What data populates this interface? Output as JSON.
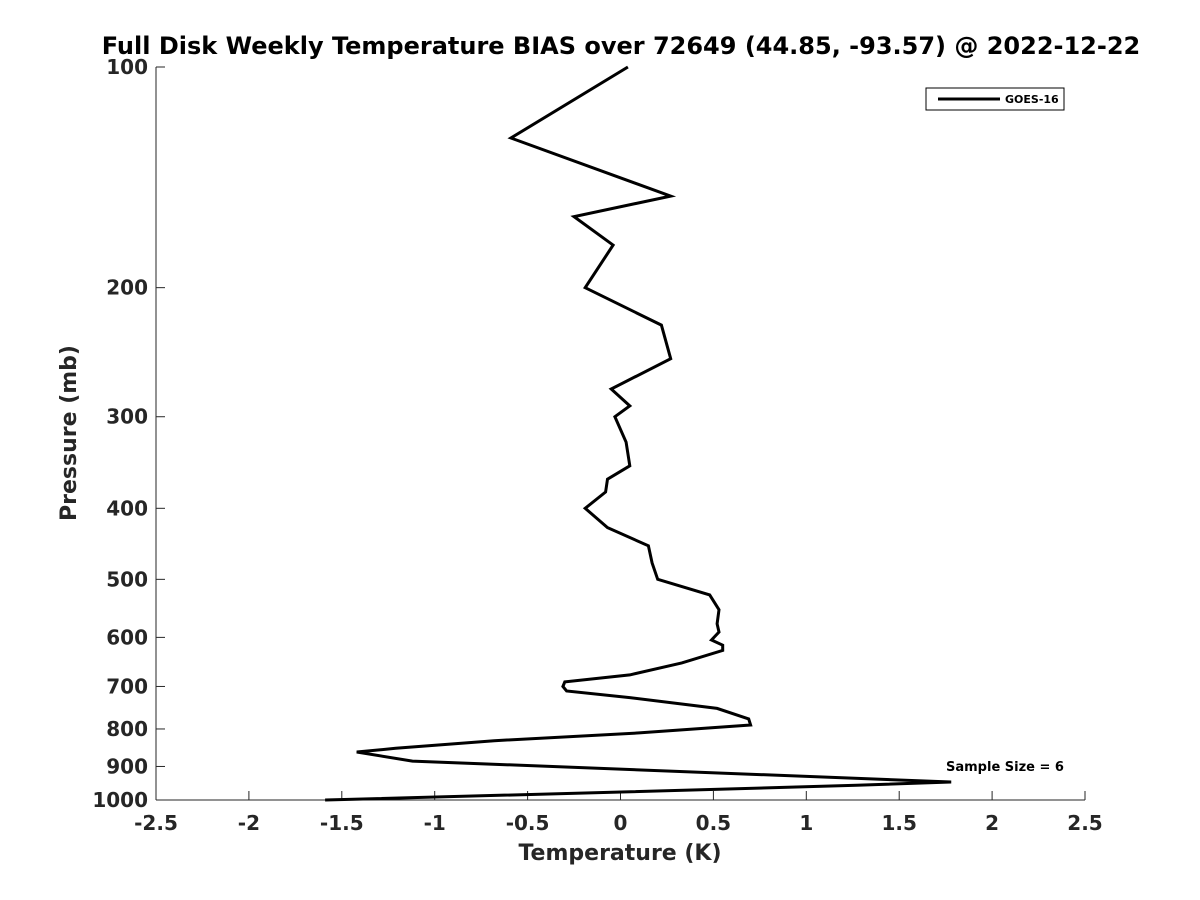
{
  "chart_data": {
    "type": "line",
    "title": "Full Disk Weekly Temperature BIAS over 72649 (44.85, -93.57) @ 2022-12-22",
    "xlabel": "Temperature (K)",
    "ylabel": "Pressure (mb)",
    "xlim": [
      -2.5,
      2.5
    ],
    "ylim": [
      1000,
      100
    ],
    "y_scale": "log",
    "y_reversed": true,
    "x_ticks": [
      -2.5,
      -2,
      -1.5,
      -1,
      -0.5,
      0,
      0.5,
      1,
      1.5,
      2,
      2.5
    ],
    "x_tick_labels": [
      "-2.5",
      "-2",
      "-1.5",
      "-1",
      "-0.5",
      "0",
      "0.5",
      "1",
      "1.5",
      "2",
      "2.5"
    ],
    "y_ticks": [
      100,
      200,
      300,
      400,
      500,
      600,
      700,
      800,
      900,
      1000
    ],
    "y_tick_labels": [
      "100",
      "200",
      "300",
      "400",
      "500",
      "600",
      "700",
      "800",
      "900",
      "1000"
    ],
    "grid": false,
    "legend_position": "top-right",
    "series": [
      {
        "name": "GOES-16",
        "color": "#000000",
        "temperature": [
          0.04,
          -0.59,
          0.27,
          -0.25,
          -0.04,
          -0.19,
          0.22,
          0.27,
          -0.05,
          0.05,
          -0.03,
          0.03,
          0.05,
          -0.07,
          -0.08,
          -0.19,
          -0.07,
          0.15,
          0.17,
          0.2,
          0.48,
          0.53,
          0.52,
          0.53,
          0.49,
          0.55,
          0.55,
          0.33,
          0.05,
          -0.3,
          -0.31,
          -0.29,
          0.05,
          0.52,
          0.69,
          0.7,
          0.1,
          -0.68,
          -1.21,
          -1.42,
          -1.12,
          1.78,
          1.27,
          0.03,
          -1.59
        ],
        "pressure": [
          100,
          125,
          150,
          160,
          175,
          200,
          225,
          250,
          275,
          290,
          300,
          325,
          350,
          365,
          380,
          400,
          425,
          450,
          475,
          500,
          525,
          550,
          575,
          590,
          605,
          615,
          625,
          650,
          675,
          690,
          700,
          710,
          725,
          750,
          775,
          790,
          810,
          830,
          850,
          860,
          885,
          945,
          955,
          975,
          1000
        ]
      }
    ],
    "annotations": [
      "Sample Size = 6"
    ]
  }
}
